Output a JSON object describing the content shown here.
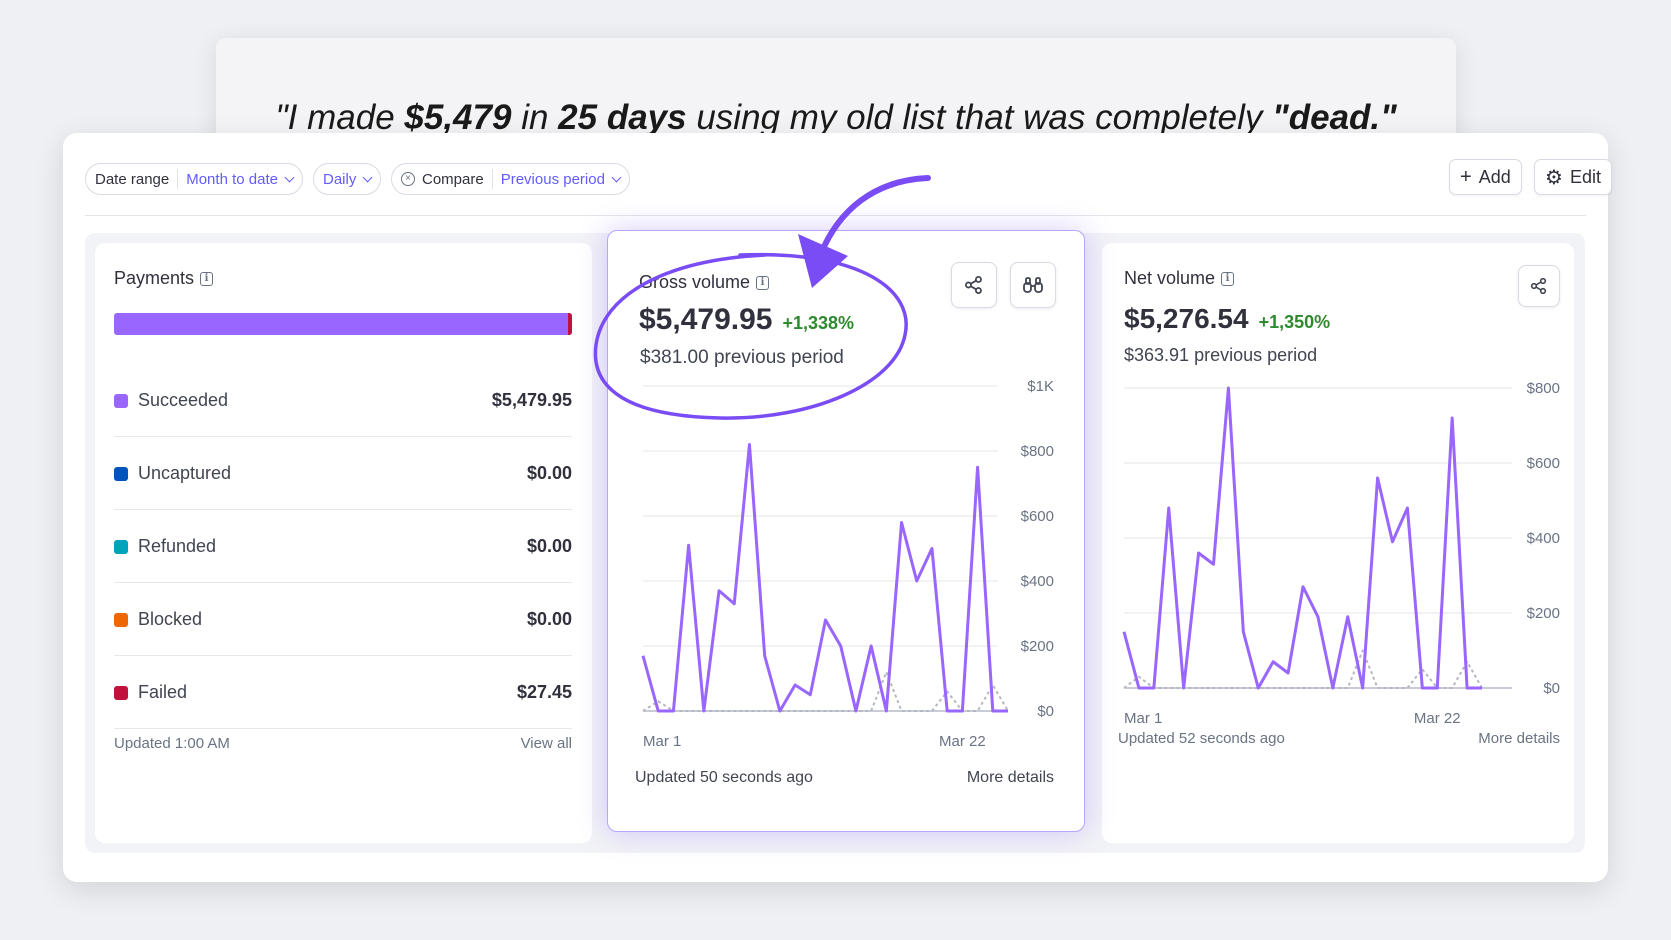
{
  "quote": {
    "p1": "\"I made ",
    "b1": "$5,479",
    "p2": " in ",
    "b2": "25 days",
    "p3": " using my old list that was completely ",
    "b3": "\"dead.\""
  },
  "toolbar": {
    "date_range_label": "Date range",
    "date_range_value": "Month to date",
    "interval_value": "Daily",
    "compare_label": "Compare",
    "compare_value": "Previous period",
    "add_label": "Add",
    "edit_label": "Edit"
  },
  "payments": {
    "title": "Payments",
    "rows": [
      {
        "label": "Succeeded",
        "amount": "$5,479.95",
        "color": "#9966ff"
      },
      {
        "label": "Uncaptured",
        "amount": "$0.00",
        "color": "#0055bc"
      },
      {
        "label": "Refunded",
        "amount": "$0.00",
        "color": "#00a3bc"
      },
      {
        "label": "Blocked",
        "amount": "$0.00",
        "color": "#ed6804"
      },
      {
        "label": "Failed",
        "amount": "$27.45",
        "color": "#c0123c"
      }
    ],
    "updated": "Updated 1:00 AM",
    "view_all": "View all"
  },
  "gross": {
    "title": "Gross volume",
    "value": "$5,479.95",
    "delta": "+1,338%",
    "previous": "$381.00 previous period",
    "updated": "Updated 50 seconds ago",
    "more": "More details",
    "y_ticks": [
      "$1K",
      "$800",
      "$600",
      "$400",
      "$200",
      "$0"
    ],
    "x_ticks": [
      "Mar 1",
      "Mar 22"
    ]
  },
  "net": {
    "title": "Net volume",
    "value": "$5,276.54",
    "delta": "+1,350%",
    "previous": "$363.91 previous period",
    "updated": "Updated 52 seconds ago",
    "more": "More details",
    "y_ticks": [
      "$800",
      "$600",
      "$400",
      "$200",
      "$0"
    ],
    "x_ticks": [
      "Mar 1",
      "Mar 22"
    ]
  },
  "chart_data": [
    {
      "type": "line",
      "title": "Gross volume",
      "x": [
        "Mar 1",
        "Mar 2",
        "Mar 3",
        "Mar 4",
        "Mar 5",
        "Mar 6",
        "Mar 7",
        "Mar 8",
        "Mar 9",
        "Mar 10",
        "Mar 11",
        "Mar 12",
        "Mar 13",
        "Mar 14",
        "Mar 15",
        "Mar 16",
        "Mar 17",
        "Mar 18",
        "Mar 19",
        "Mar 20",
        "Mar 21",
        "Mar 22",
        "Mar 23",
        "Mar 24",
        "Mar 25"
      ],
      "series": [
        {
          "values": [
            170,
            0,
            0,
            510,
            0,
            370,
            330,
            820,
            170,
            0,
            80,
            50,
            280,
            200,
            0,
            200,
            0,
            580,
            400,
            500,
            0,
            0,
            750,
            0,
            0
          ]
        },
        {
          "values": [
            0,
            30,
            0,
            0,
            0,
            0,
            0,
            0,
            0,
            0,
            0,
            0,
            0,
            0,
            0,
            0,
            120,
            0,
            0,
            0,
            60,
            0,
            0,
            80,
            0
          ]
        }
      ],
      "ylim": [
        0,
        1000
      ],
      "grid": true
    },
    {
      "type": "line",
      "title": "Net volume",
      "x": [
        "Mar 1",
        "Mar 2",
        "Mar 3",
        "Mar 4",
        "Mar 5",
        "Mar 6",
        "Mar 7",
        "Mar 8",
        "Mar 9",
        "Mar 10",
        "Mar 11",
        "Mar 12",
        "Mar 13",
        "Mar 14",
        "Mar 15",
        "Mar 16",
        "Mar 17",
        "Mar 18",
        "Mar 19",
        "Mar 20",
        "Mar 21",
        "Mar 22",
        "Mar 23",
        "Mar 24",
        "Mar 25"
      ],
      "series": [
        {
          "values": [
            150,
            0,
            0,
            480,
            0,
            360,
            330,
            800,
            150,
            0,
            70,
            40,
            270,
            190,
            0,
            190,
            0,
            560,
            390,
            480,
            0,
            0,
            720,
            0,
            0
          ]
        },
        {
          "values": [
            0,
            30,
            0,
            0,
            0,
            0,
            0,
            0,
            0,
            0,
            0,
            0,
            0,
            0,
            0,
            0,
            100,
            0,
            0,
            0,
            50,
            0,
            0,
            70,
            0
          ]
        }
      ],
      "ylim": [
        0,
        800
      ],
      "grid": true
    }
  ]
}
